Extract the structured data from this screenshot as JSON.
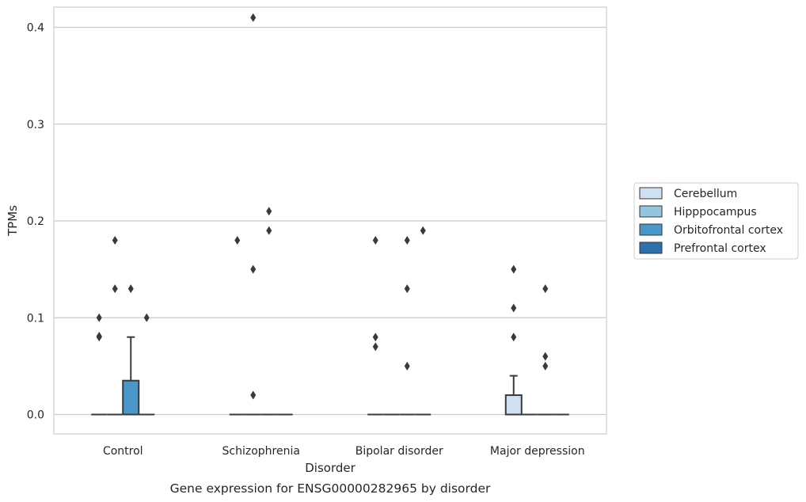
{
  "chart_data": {
    "type": "box",
    "title": "Gene expression for ENSG00000282965 by disorder",
    "xlabel": "Disorder",
    "ylabel": "TPMs",
    "ylim": [
      -0.02,
      0.43
    ],
    "yticks": [
      0.0,
      0.1,
      0.2,
      0.3,
      0.4
    ],
    "ytick_labels": [
      "0.0",
      "0.1",
      "0.2",
      "0.3",
      "0.4"
    ],
    "categories": [
      "Control",
      "Schizophrenia",
      "Bipolar disorder",
      "Major depression"
    ],
    "grid": "horizontal",
    "legend_position": "right",
    "series": [
      {
        "name": "Cerebellum",
        "color": "#d0e1f2",
        "boxes": [
          {
            "q1": 0,
            "median": 0,
            "q3": 0,
            "whisker_low": 0,
            "whisker_high": 0,
            "outliers": [
              0.08,
              0.1,
              0.081
            ]
          },
          {
            "q1": 0,
            "median": 0,
            "q3": 0,
            "whisker_low": 0,
            "whisker_high": 0,
            "outliers": [
              0.18
            ]
          },
          {
            "q1": 0,
            "median": 0,
            "q3": 0,
            "whisker_low": 0,
            "whisker_high": 0,
            "outliers": [
              0.07,
              0.08,
              0.18
            ]
          },
          {
            "q1": 0,
            "median": 0,
            "q3": 0.02,
            "whisker_low": 0,
            "whisker_high": 0.04,
            "outliers": [
              0.08,
              0.11,
              0.15
            ]
          }
        ]
      },
      {
        "name": "Hipppocampus",
        "color": "#94c4df",
        "boxes": [
          {
            "q1": 0,
            "median": 0,
            "q3": 0,
            "whisker_low": 0,
            "whisker_high": 0,
            "outliers": [
              0.13,
              0.18
            ]
          },
          {
            "q1": 0,
            "median": 0,
            "q3": 0,
            "whisker_low": 0,
            "whisker_high": 0,
            "outliers": [
              0.02,
              0.15,
              0.41
            ]
          },
          {
            "q1": 0,
            "median": 0,
            "q3": 0,
            "whisker_low": 0,
            "whisker_high": 0,
            "outliers": []
          },
          {
            "q1": 0,
            "median": 0,
            "q3": 0,
            "whisker_low": 0,
            "whisker_high": 0,
            "outliers": []
          }
        ]
      },
      {
        "name": "Orbitofrontal cortex",
        "color": "#4a98c9",
        "boxes": [
          {
            "q1": 0,
            "median": 0,
            "q3": 0.035,
            "whisker_low": 0,
            "whisker_high": 0.08,
            "outliers": [
              0.13
            ]
          },
          {
            "q1": 0,
            "median": 0,
            "q3": 0,
            "whisker_low": 0,
            "whisker_high": 0,
            "outliers": [
              0.19,
              0.21
            ]
          },
          {
            "q1": 0,
            "median": 0,
            "q3": 0,
            "whisker_low": 0,
            "whisker_high": 0,
            "outliers": [
              0.05,
              0.13,
              0.18
            ]
          },
          {
            "q1": 0,
            "median": 0,
            "q3": 0,
            "whisker_low": 0,
            "whisker_high": 0,
            "outliers": [
              0.05,
              0.06,
              0.13
            ]
          }
        ]
      },
      {
        "name": "Prefrontal cortex",
        "color": "#2e6fad",
        "boxes": [
          {
            "q1": 0,
            "median": 0,
            "q3": 0,
            "whisker_low": 0,
            "whisker_high": 0,
            "outliers": [
              0.1
            ]
          },
          {
            "q1": 0,
            "median": 0,
            "q3": 0,
            "whisker_low": 0,
            "whisker_high": 0,
            "outliers": []
          },
          {
            "q1": 0,
            "median": 0,
            "q3": 0,
            "whisker_low": 0,
            "whisker_high": 0,
            "outliers": [
              0.19
            ]
          },
          {
            "q1": 0,
            "median": 0,
            "q3": 0,
            "whisker_low": 0,
            "whisker_high": 0,
            "outliers": []
          }
        ]
      }
    ]
  }
}
